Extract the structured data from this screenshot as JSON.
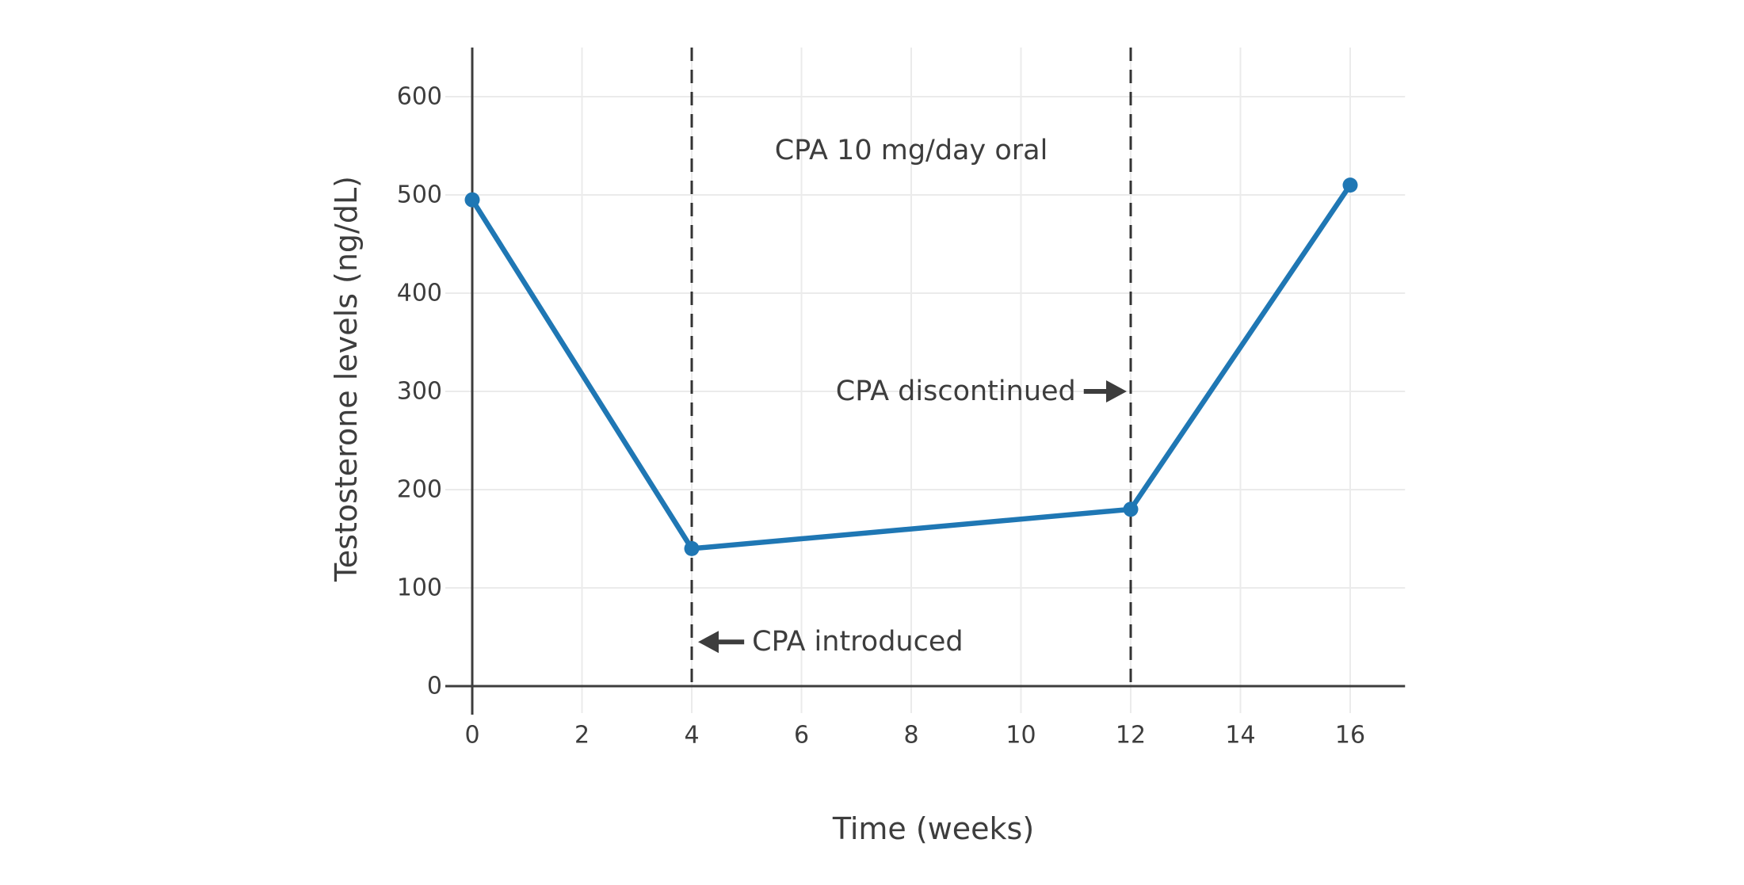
{
  "chart_data": {
    "type": "line",
    "xlabel": "Time (weeks)",
    "ylabel": "Testosterone levels (ng/dL)",
    "x": [
      0,
      4,
      12,
      16
    ],
    "y": [
      495,
      140,
      180,
      510
    ],
    "x_ticks": [
      0,
      2,
      4,
      6,
      8,
      10,
      12,
      14,
      16
    ],
    "y_ticks": [
      0,
      100,
      200,
      300,
      400,
      500,
      600
    ],
    "xlim": [
      0,
      17
    ],
    "ylim": [
      0,
      650
    ],
    "grid": true,
    "legend": "none",
    "line_color": "#1f77b4",
    "marker": "circle",
    "vlines": [
      {
        "x": 4,
        "style": "dashed",
        "color": "#333333"
      },
      {
        "x": 12,
        "style": "dashed",
        "color": "#333333"
      }
    ],
    "annotations": [
      {
        "id": "dose-annotation",
        "text": "CPA 10 mg/day oral",
        "x": 8.0,
        "y": 545,
        "align": "center",
        "arrow": "none"
      },
      {
        "id": "discontinued-annotation",
        "text": "CPA discontinued",
        "x": 11.0,
        "y": 300,
        "align": "right",
        "arrow": "right",
        "arrow_to_x": 12
      },
      {
        "id": "introduced-annotation",
        "text": "CPA introduced",
        "x": 5.1,
        "y": 45,
        "align": "left",
        "arrow": "left",
        "arrow_to_x": 4
      }
    ]
  },
  "colors": {
    "line": "#1f77b4",
    "text": "#3d3d3d",
    "axis": "#3d3d3d",
    "grid": "#ebebeb",
    "dashed_line": "#333333",
    "background": "#ffffff"
  }
}
